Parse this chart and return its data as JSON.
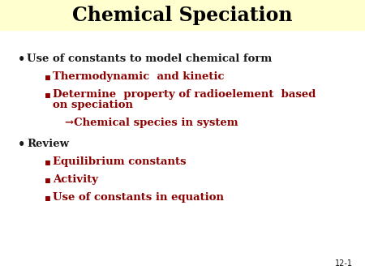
{
  "title": "Chemical Speciation",
  "title_color": "#000000",
  "title_bg_color": "#FFFFD0",
  "bg_color": "#FFFFFF",
  "text_color_black": "#1a1a1a",
  "text_color_red": "#8B0000",
  "slide_number": "12-1",
  "bullet1": "Use of constants to model chemical form",
  "sub1a": "Thermodynamic  and kinetic",
  "sub1b_line1": "Determine  property of radioelement  based",
  "sub1b_line2": "on speciation",
  "sub1c": "→Chemical species in system",
  "bullet2": "Review",
  "sub2a": "Equilibrium constants",
  "sub2b": "Activity",
  "sub2c": "Use of constants in equation",
  "title_fontsize": 17,
  "bullet_fontsize": 9.5,
  "sub_fontsize": 9.5,
  "slide_num_fontsize": 7
}
